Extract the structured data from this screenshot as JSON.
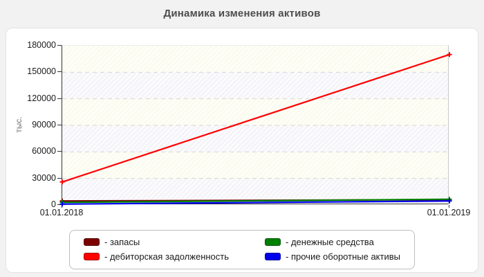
{
  "chart_data": {
    "type": "line",
    "title": "Динамика изменения активов",
    "ylabel": "тыс.",
    "x": [
      "01.01.2018",
      "01.01.2019"
    ],
    "ylim": [
      0,
      180000
    ],
    "yticks": [
      0,
      30000,
      60000,
      90000,
      120000,
      150000,
      180000
    ],
    "grid": "horizontal-dashed",
    "legend_position": "bottom-box",
    "plot_background": "alternating cream/light-blue hatched bands",
    "series": [
      {
        "key": "zapasy",
        "name": "запасы",
        "legend_label": "- запасы",
        "color": "#7B0000",
        "values": [
          4500,
          6000
        ]
      },
      {
        "key": "debitorskaya-zadolzhennost",
        "name": "дебиторская задолженность",
        "legend_label": "- дебиторская задолженность",
        "color": "#FF0000",
        "values": [
          26000,
          170000
        ]
      },
      {
        "key": "denezhnye-sredstva",
        "name": "денежные средства",
        "legend_label": "- денежные средства",
        "color": "#008000",
        "values": [
          3000,
          6500
        ]
      },
      {
        "key": "prochie-oborotnye-aktivy",
        "name": "прочие оборотные активы",
        "legend_label": "- прочие оборотные активы",
        "color": "#0000EE",
        "values": [
          1000,
          4500
        ]
      }
    ]
  }
}
